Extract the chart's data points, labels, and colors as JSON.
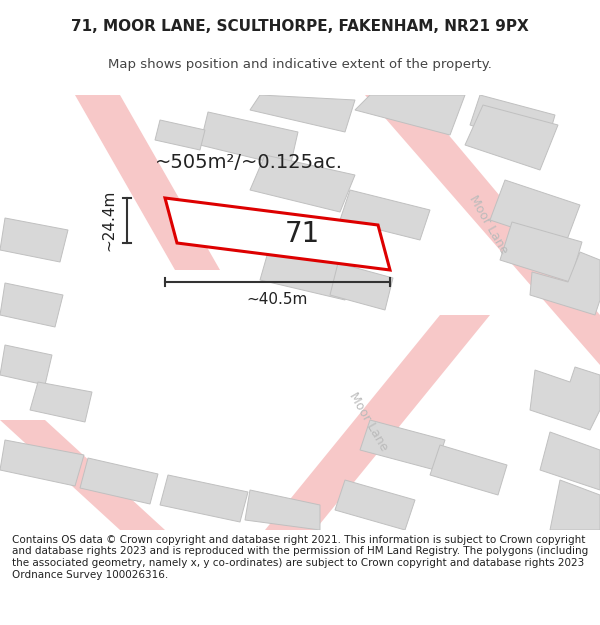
{
  "title_line1": "71, MOOR LANE, SCULTHORPE, FAKENHAM, NR21 9PX",
  "title_line2": "Map shows position and indicative extent of the property.",
  "area_label": "~505m²/~0.125ac.",
  "width_label": "~40.5m",
  "height_label": "~24.4m",
  "plot_number": "71",
  "footer_text": "Contains OS data © Crown copyright and database right 2021. This information is subject to Crown copyright and database rights 2023 and is reproduced with the permission of HM Land Registry. The polygons (including the associated geometry, namely x, y co-ordinates) are subject to Crown copyright and database rights 2023 Ordnance Survey 100026316.",
  "bg_color": "#ffffff",
  "map_bg": "#ffffff",
  "road_color": "#f7c8c8",
  "building_fill": "#d8d8d8",
  "building_edge": "#c0c0c0",
  "plot_outline_color": "#dd0000",
  "plot_fill": "#ffffff",
  "dim_line_color": "#333333",
  "road_label_color": "#bbbbbb",
  "title_fontsize": 11,
  "subtitle_fontsize": 9.5,
  "footer_fontsize": 7.5
}
